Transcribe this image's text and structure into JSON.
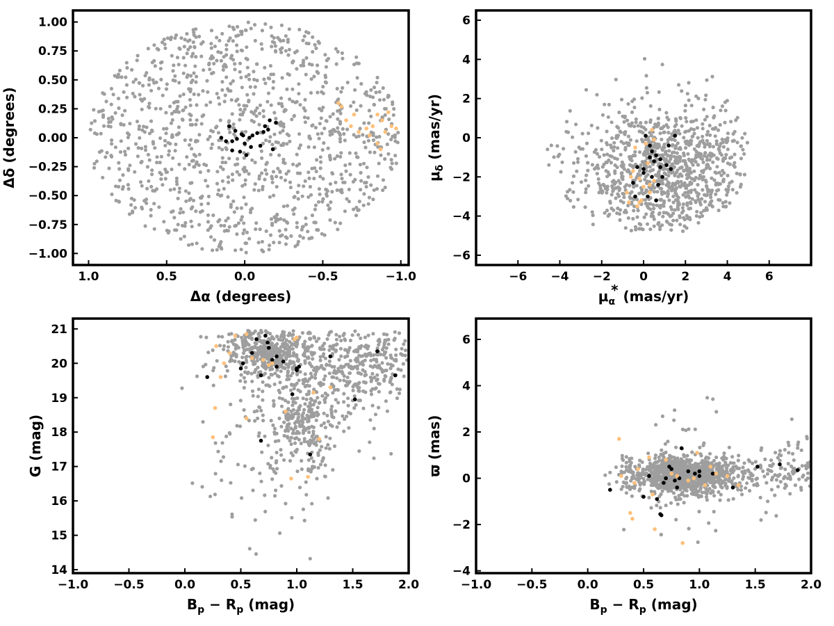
{
  "colors": {
    "field": "#9e9e9e",
    "member": "#000000",
    "candidate": "#ffc07a"
  },
  "chart_data": [
    {
      "type": "scatter",
      "name": "sky-position",
      "xlabel": "Δα (degrees)",
      "ylabel": "Δδ (degrees)",
      "xlim": [
        1.1,
        -1.05
      ],
      "ylim": [
        -1.1,
        1.1
      ],
      "x_inverted": true,
      "xticks": [
        1.0,
        0.5,
        0.0,
        -0.5,
        -1.0
      ],
      "xtick_labels": [
        "1.0",
        "0.5",
        "0.0",
        "−0.5",
        "−1.0"
      ],
      "yticks": [
        -1.0,
        -0.75,
        -0.5,
        -0.25,
        0.0,
        0.25,
        0.5,
        0.75,
        1.0
      ],
      "ytick_labels": [
        "−1.00",
        "−0.75",
        "−0.50",
        "−0.25",
        "0.00",
        "0.25",
        "0.50",
        "0.75",
        "1.00"
      ],
      "field_distribution": {
        "shape": "uniform-disc",
        "center": [
          0,
          0
        ],
        "radius": 1.0,
        "count": 1150,
        "seed": 11
      },
      "series": [
        {
          "role": "member",
          "x": [
            -0.15,
            -0.12,
            -0.08,
            -0.05,
            -0.03,
            0.02,
            0.05,
            0.08,
            0.1,
            -0.2,
            -0.18,
            -0.1,
            0.0,
            0.03,
            -0.01,
            0.12,
            0.15,
            -0.13,
            0.06,
            -0.04,
            -0.16,
            0.08,
            0.01
          ],
          "y": [
            0.07,
            0.05,
            0.04,
            0.02,
            0.0,
            0.03,
            -0.01,
            -0.03,
            0.1,
            0.13,
            -0.1,
            -0.07,
            -0.05,
            -0.12,
            -0.15,
            -0.03,
            0.0,
            0.1,
            0.06,
            -0.08,
            0.15,
            -0.11,
            0.02
          ]
        },
        {
          "role": "candidate",
          "x": [
            -0.6,
            -0.62,
            -0.65,
            -0.68,
            -0.7,
            -0.73,
            -0.78,
            -0.82,
            -0.85,
            -0.88,
            -0.9,
            -0.92,
            -0.94,
            -0.97,
            -0.85,
            -0.87,
            -0.8
          ],
          "y": [
            0.3,
            0.27,
            0.15,
            0.1,
            0.2,
            0.05,
            0.08,
            0.1,
            0.2,
            0.15,
            0.05,
            0.22,
            0.1,
            0.08,
            -0.05,
            -0.1,
            0.02
          ]
        }
      ]
    },
    {
      "type": "scatter",
      "name": "proper-motion",
      "xlabel": "μα* (mas/yr)",
      "ylabel": "μδ (mas/yr)",
      "xlim": [
        -8,
        8
      ],
      "ylim": [
        -6.5,
        6.5
      ],
      "xticks": [
        -6,
        -4,
        -2,
        0,
        2,
        4,
        6
      ],
      "xtick_labels": [
        "−6",
        "−4",
        "−2",
        "0",
        "2",
        "4",
        "6"
      ],
      "yticks": [
        -6,
        -4,
        -2,
        0,
        2,
        4,
        6
      ],
      "ytick_labels": [
        "−6",
        "−4",
        "−2",
        "0",
        "2",
        "4",
        "6"
      ],
      "field_distribution": {
        "shape": "clipped-blob",
        "center": [
          1.0,
          -1.8
        ],
        "spread": [
          2.2,
          1.8
        ],
        "clip": {
          "ymin": -4.9,
          "xmin": -4.6,
          "xmax": 5.0,
          "ymax": 4.6
        },
        "count": 1000,
        "seed": 23
      },
      "series": [
        {
          "role": "member",
          "x": [
            0.1,
            0.3,
            0.4,
            0.6,
            0.5,
            1.2,
            1.5,
            0.8,
            0.7,
            0.0,
            0.2,
            -0.3,
            -0.5,
            0.9,
            1.1,
            0.4,
            0.6,
            0.2,
            -0.4,
            0.8,
            1.3,
            0.0,
            0.3
          ],
          "y": [
            0.1,
            -0.4,
            -0.7,
            -0.9,
            -1.2,
            -0.4,
            0.1,
            -1.5,
            -2.4,
            -1.6,
            -1.3,
            -1.5,
            -2.3,
            -2.0,
            -1.4,
            -2.0,
            -3.2,
            -3.0,
            -3.0,
            -1.1,
            -1.6,
            -1.8,
            -1.0
          ]
        },
        {
          "role": "candidate",
          "x": [
            -0.4,
            -0.6,
            -0.2,
            0.0,
            0.3,
            0.5,
            -0.8,
            -0.3,
            -0.1,
            0.4,
            -0.5,
            0.2,
            0.5,
            -0.7,
            0.1,
            0.3,
            -0.2
          ],
          "y": [
            -0.5,
            -2.0,
            -2.1,
            -2.5,
            -2.4,
            -2.2,
            -2.8,
            -3.5,
            -3.2,
            0.4,
            -1.7,
            -1.3,
            -0.1,
            -3.3,
            -0.3,
            -2.8,
            -3.3
          ]
        }
      ]
    },
    {
      "type": "scatter",
      "name": "cmd",
      "xlabel": "Bp − Rp (mag)",
      "ylabel": "G (mag)",
      "xlim": [
        -1.0,
        2.0
      ],
      "ylim": [
        13.9,
        21.3
      ],
      "y_inverted": true,
      "xticks": [
        -1.0,
        -0.5,
        0.0,
        0.5,
        1.0,
        1.5,
        2.0
      ],
      "xtick_labels": [
        "−1.0",
        "−0.5",
        "0.0",
        "0.5",
        "1.0",
        "1.5",
        "2.0"
      ],
      "yticks": [
        14,
        15,
        16,
        17,
        18,
        19,
        20,
        21
      ],
      "ytick_labels": [
        "14",
        "15",
        "16",
        "17",
        "18",
        "19",
        "20",
        "21"
      ],
      "field_distribution": {
        "shape": "cmd-clumps",
        "count": 1150,
        "seed": 37
      },
      "series": [
        {
          "role": "member",
          "x": [
            0.2,
            0.5,
            0.52,
            0.6,
            0.64,
            0.68,
            0.72,
            0.74,
            0.75,
            0.78,
            0.82,
            0.88,
            0.96,
            1.0,
            1.02,
            1.12,
            1.3,
            1.52,
            1.72,
            1.88,
            0.68,
            0.82,
            1.0
          ],
          "y": [
            19.6,
            19.85,
            20.0,
            20.3,
            20.7,
            19.65,
            20.8,
            20.6,
            20.45,
            20.1,
            20.2,
            20.05,
            19.1,
            19.85,
            19.9,
            17.35,
            20.2,
            18.95,
            20.35,
            19.65,
            17.75,
            19.9,
            19.8
          ]
        },
        {
          "role": "candidate",
          "x": [
            0.25,
            0.27,
            0.28,
            0.32,
            0.35,
            0.4,
            0.45,
            0.55,
            0.6,
            0.7,
            0.75,
            0.78,
            0.95,
            0.98,
            1.0,
            1.1,
            1.15,
            1.2,
            1.3,
            0.55,
            0.9
          ],
          "y": [
            17.85,
            18.7,
            20.5,
            19.6,
            20.0,
            20.3,
            20.8,
            20.85,
            20.15,
            20.1,
            19.95,
            20.0,
            16.65,
            20.7,
            20.75,
            16.7,
            19.15,
            17.8,
            19.3,
            18.4,
            18.6
          ]
        }
      ]
    },
    {
      "type": "scatter",
      "name": "parallax",
      "xlabel": "Bp − Rp (mag)",
      "ylabel": "ϖ (mas)",
      "xlim": [
        -1.0,
        2.0
      ],
      "ylim": [
        -4.1,
        6.9
      ],
      "xticks": [
        -1.0,
        -0.5,
        0.0,
        0.5,
        1.0,
        1.5,
        2.0
      ],
      "xtick_labels": [
        "−1.0",
        "−0.5",
        "0.0",
        "0.5",
        "1.0",
        "1.5",
        "2.0"
      ],
      "yticks": [
        -4,
        -2,
        0,
        2,
        4,
        6
      ],
      "ytick_labels": [
        "−4",
        "−2",
        "0",
        "2",
        "4",
        "6"
      ],
      "field_distribution": {
        "shape": "band",
        "count": 1300,
        "seed": 53
      },
      "series": [
        {
          "role": "member",
          "x": [
            0.2,
            0.5,
            0.55,
            0.62,
            0.65,
            0.66,
            0.7,
            0.73,
            0.75,
            0.78,
            0.8,
            0.84,
            0.9,
            0.96,
            1.0,
            1.12,
            1.3,
            1.52,
            1.72,
            1.88,
            0.68,
            0.82,
            1.0
          ],
          "y": [
            -0.5,
            -0.8,
            0.1,
            -0.9,
            -1.55,
            -1.6,
            0.0,
            0.5,
            0.4,
            -0.1,
            -0.4,
            1.3,
            0.3,
            0.2,
            0.3,
            0.2,
            -0.4,
            0.5,
            0.6,
            0.35,
            -0.2,
            0.0,
            0.1
          ]
        },
        {
          "role": "candidate",
          "x": [
            0.28,
            0.3,
            0.38,
            0.4,
            0.42,
            0.55,
            0.6,
            0.7,
            0.75,
            0.8,
            0.85,
            0.9,
            0.95,
            0.98,
            1.05,
            1.1,
            1.15,
            1.25,
            1.35,
            0.58,
            0.45
          ],
          "y": [
            1.7,
            0.1,
            -1.5,
            -1.75,
            -0.2,
            0.9,
            -2.2,
            0.8,
            0.2,
            0.1,
            -2.8,
            -0.1,
            0.0,
            1.1,
            -0.3,
            0.5,
            0.2,
            0.1,
            -0.3,
            -0.7,
            0.4
          ]
        }
      ]
    }
  ]
}
